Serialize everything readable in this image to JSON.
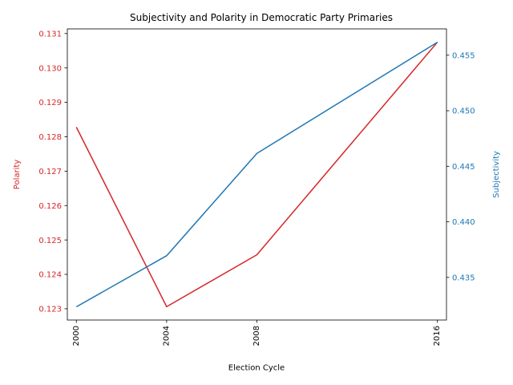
{
  "chart_data": {
    "type": "line",
    "title": "Subjectivity and Polarity in Democratic Party Primaries",
    "xlabel": "Election Cycle",
    "x": [
      2000,
      2004,
      2008,
      2016
    ],
    "x_ticks": [
      "2000",
      "2004",
      "2008",
      "2016"
    ],
    "xlim": [
      1999.6,
      2016.4
    ],
    "grid": false,
    "series": [
      {
        "name": "Polarity",
        "axis": "left",
        "color": "#d62728",
        "values": [
          0.12828,
          0.12306,
          0.12457,
          0.13075
        ]
      },
      {
        "name": "Subjectivity",
        "axis": "right",
        "color": "#1f77b4",
        "values": [
          0.43235,
          0.43695,
          0.44616,
          0.45617
        ]
      }
    ],
    "left_axis": {
      "label": "Polarity",
      "color": "#d62728",
      "range": [
        0.122672,
        0.131136
      ],
      "ticks": [
        0.123,
        0.124,
        0.125,
        0.126,
        0.127,
        0.128,
        0.129,
        0.13,
        0.131
      ],
      "tick_labels": [
        "0.123",
        "0.124",
        "0.125",
        "0.126",
        "0.127",
        "0.128",
        "0.129",
        "0.130",
        "0.131"
      ]
    },
    "right_axis": {
      "label": "Subjectivity",
      "color": "#1f77b4",
      "range": [
        0.431161,
        0.457368
      ],
      "ticks": [
        0.435,
        0.44,
        0.445,
        0.45,
        0.455
      ],
      "tick_labels": [
        "0.435",
        "0.440",
        "0.445",
        "0.450",
        "0.455"
      ]
    }
  }
}
